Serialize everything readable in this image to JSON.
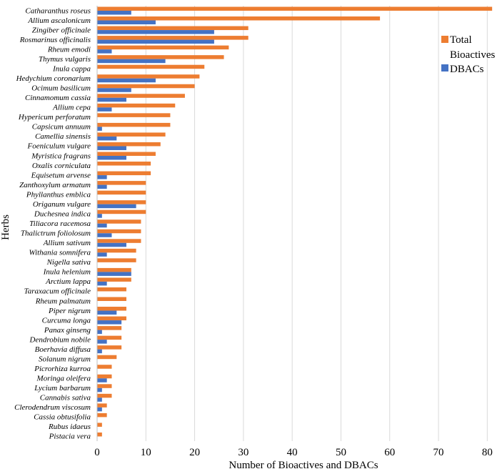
{
  "chart_data": {
    "type": "bar",
    "orientation": "horizontal",
    "title": "",
    "xlabel": "Number of Bioactives and DBACs",
    "ylabel": "Herbs",
    "xlim": [
      0,
      82
    ],
    "xticks": [
      0,
      10,
      20,
      30,
      40,
      50,
      60,
      70,
      80
    ],
    "grid": true,
    "legend_position": "top-right",
    "categories": [
      "Catharanthus roseus",
      "Allium ascalonicum",
      "Zingiber officinale",
      "Rosmarinus officinalis",
      "Rheum emodi",
      "Thymus vulgaris",
      "Inula cappa",
      "Hedychium coronarium",
      "Ocimum basilicum",
      "Cinnamomum cassia",
      "Allium cepa",
      "Hypericum perforatum",
      "Capsicum annuum",
      "Camellia sinensis",
      "Foeniculum vulgare",
      "Myristica fragrans",
      "Oxalis corniculata",
      "Equisetum arvense",
      "Zanthoxylum armatum",
      "Phyllanthus emblica",
      "Origanum vulgare",
      "Duchesnea indica",
      "Tiliacora racemosa",
      "Thalictrum foliolosum",
      "Allium sativum",
      "Withania somnifera",
      "Nigella sativa",
      "Inula helenium",
      "Arctium lappa",
      "Taraxacum officinale",
      "Rheum palmatum",
      "Piper nigrum",
      "Curcuma longa",
      "Panax ginseng",
      "Dendrobium nobile",
      "Boerhavia diffusa",
      "Solanum nigrum",
      "Picrorhiza kurroa",
      "Moringa oleifera",
      "Lycium barbarum",
      "Cannabis sativa",
      "Clerodendrum viscosum",
      "Cassia obtusifolia",
      "Rubus idaeus",
      "Pistacia vera"
    ],
    "series": [
      {
        "name": "Total Bioactives",
        "legend_lines": [
          "Total",
          "Bioactives"
        ],
        "color": "#ED7D31",
        "values": [
          81,
          58,
          31,
          31,
          27,
          26,
          22,
          21,
          20,
          18,
          16,
          15,
          15,
          14,
          13,
          12,
          11,
          11,
          10,
          10,
          10,
          10,
          9,
          9,
          9,
          8,
          8,
          7,
          7,
          6,
          6,
          6,
          6,
          5,
          5,
          5,
          4,
          3,
          3,
          3,
          3,
          2,
          2,
          1,
          1
        ]
      },
      {
        "name": "DBACs",
        "legend_lines": [
          "DBACs"
        ],
        "color": "#4472C4",
        "values": [
          7,
          12,
          24,
          24,
          3,
          14,
          0,
          12,
          7,
          6,
          3,
          0,
          1,
          4,
          6,
          6,
          0,
          2,
          2,
          0,
          8,
          1,
          2,
          3,
          6,
          2,
          0,
          7,
          2,
          0,
          0,
          4,
          5,
          1,
          2,
          1,
          0,
          0,
          2,
          1,
          1,
          1,
          0,
          0,
          0
        ]
      }
    ]
  }
}
